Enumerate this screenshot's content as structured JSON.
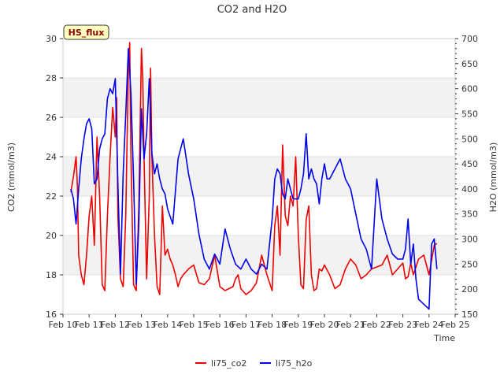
{
  "chart_data": {
    "type": "line",
    "title": "CO2 and H2O",
    "xlabel": "Time",
    "ylabel_left": "CO2 (mmol/m3)",
    "ylabel_right": "H2O (mmol/m3)",
    "badge": "HS_flux",
    "xlim": [
      10,
      25
    ],
    "ylim_left": [
      16,
      30
    ],
    "ylim_right": [
      150,
      700
    ],
    "x_ticks": [
      {
        "v": 10,
        "label": "Feb 10"
      },
      {
        "v": 11,
        "label": "Feb 11"
      },
      {
        "v": 12,
        "label": "Feb 12"
      },
      {
        "v": 13,
        "label": "Feb 13"
      },
      {
        "v": 14,
        "label": "Feb 14"
      },
      {
        "v": 15,
        "label": "Feb 15"
      },
      {
        "v": 16,
        "label": "Feb 16"
      },
      {
        "v": 17,
        "label": "Feb 17"
      },
      {
        "v": 18,
        "label": "Feb 18"
      },
      {
        "v": 19,
        "label": "Feb 19"
      },
      {
        "v": 20,
        "label": "Feb 20"
      },
      {
        "v": 21,
        "label": "Feb 21"
      },
      {
        "v": 22,
        "label": "Feb 22"
      },
      {
        "v": 23,
        "label": "Feb 23"
      },
      {
        "v": 24,
        "label": "Feb 24"
      },
      {
        "v": 25,
        "label": "Feb 25"
      }
    ],
    "y_ticks_left": [
      "16",
      "18",
      "20",
      "22",
      "24",
      "26",
      "28",
      "30"
    ],
    "y_ticks_right": [
      "150",
      "200",
      "250",
      "300",
      "350",
      "400",
      "450",
      "500",
      "550",
      "600",
      "650",
      "700"
    ],
    "grid": "horizontal bands",
    "legend_position": "bottom-center",
    "series": [
      {
        "name": "li75_co2",
        "axis": "left",
        "color": "#ee0000",
        "x": [
          10.3,
          10.4,
          10.5,
          10.55,
          10.6,
          10.7,
          10.8,
          10.9,
          11.0,
          11.1,
          11.2,
          11.3,
          11.4,
          11.5,
          11.6,
          11.7,
          11.8,
          11.9,
          12.0,
          12.05,
          12.1,
          12.2,
          12.3,
          12.4,
          12.5,
          12.55,
          12.6,
          12.7,
          12.8,
          12.9,
          13.0,
          13.05,
          13.1,
          13.2,
          13.3,
          13.35,
          13.4,
          13.5,
          13.6,
          13.7,
          13.8,
          13.9,
          14.0,
          14.1,
          14.2,
          14.3,
          14.4,
          14.5,
          14.6,
          14.8,
          15.0,
          15.2,
          15.4,
          15.6,
          15.8,
          16.0,
          16.2,
          16.5,
          16.6,
          16.7,
          16.8,
          17.0,
          17.2,
          17.4,
          17.6,
          17.8,
          18.0,
          18.1,
          18.2,
          18.3,
          18.4,
          18.5,
          18.6,
          18.7,
          18.8,
          18.9,
          19.0,
          19.1,
          19.2,
          19.3,
          19.4,
          19.5,
          19.6,
          19.7,
          19.8,
          19.9,
          20.0,
          20.2,
          20.4,
          20.6,
          20.8,
          21.0,
          21.2,
          21.4,
          21.6,
          21.8,
          22.0,
          22.2,
          22.4,
          22.6,
          22.8,
          23.0,
          23.1,
          23.2,
          23.3,
          23.4,
          23.6,
          23.8,
          24.0,
          24.2,
          24.3
        ],
        "values": [
          22.2,
          23.0,
          24.0,
          22.5,
          19.0,
          18.0,
          17.5,
          19.0,
          21.0,
          22.0,
          19.5,
          25.0,
          22.0,
          17.5,
          17.2,
          21.0,
          24.0,
          26.5,
          25.0,
          27.0,
          21.0,
          17.8,
          17.4,
          21.0,
          28.5,
          29.8,
          24.0,
          17.5,
          17.2,
          21.5,
          29.5,
          28.0,
          24.0,
          17.8,
          22.0,
          28.5,
          24.0,
          20.0,
          17.4,
          17.0,
          21.5,
          19.0,
          19.3,
          18.8,
          18.5,
          18.0,
          17.4,
          17.8,
          18.0,
          18.3,
          18.5,
          17.6,
          17.5,
          17.8,
          19.0,
          17.4,
          17.2,
          17.4,
          17.8,
          18.0,
          17.3,
          17.0,
          17.2,
          17.6,
          19.0,
          18.0,
          17.2,
          20.5,
          21.5,
          19.0,
          24.6,
          21.0,
          20.5,
          22.0,
          21.5,
          24.0,
          20.0,
          17.5,
          17.3,
          20.8,
          21.5,
          18.0,
          17.2,
          17.3,
          18.3,
          18.2,
          18.5,
          18.0,
          17.3,
          17.5,
          18.3,
          18.8,
          18.5,
          17.8,
          18.0,
          18.3,
          18.4,
          18.5,
          19.0,
          18.0,
          18.3,
          18.6,
          17.8,
          17.9,
          18.6,
          18.0,
          18.8,
          19.0,
          18.0,
          19.5,
          19.6
        ]
      },
      {
        "name": "li75_h2o",
        "axis": "right",
        "color": "#0000ee",
        "x": [
          10.3,
          10.4,
          10.5,
          10.6,
          10.7,
          10.8,
          10.9,
          11.0,
          11.1,
          11.2,
          11.3,
          11.4,
          11.5,
          11.6,
          11.7,
          11.8,
          11.9,
          12.0,
          12.1,
          12.2,
          12.3,
          12.4,
          12.5,
          12.6,
          12.7,
          12.8,
          12.9,
          13.0,
          13.1,
          13.2,
          13.3,
          13.4,
          13.5,
          13.6,
          13.7,
          13.8,
          13.9,
          14.0,
          14.2,
          14.4,
          14.6,
          14.8,
          15.0,
          15.2,
          15.4,
          15.6,
          15.8,
          16.0,
          16.2,
          16.4,
          16.6,
          16.8,
          17.0,
          17.2,
          17.4,
          17.6,
          17.8,
          18.0,
          18.1,
          18.2,
          18.3,
          18.4,
          18.5,
          18.6,
          18.7,
          18.8,
          19.0,
          19.1,
          19.2,
          19.3,
          19.4,
          19.5,
          19.6,
          19.7,
          19.8,
          19.9,
          20.0,
          20.1,
          20.2,
          20.4,
          20.6,
          20.8,
          21.0,
          21.2,
          21.4,
          21.6,
          21.8,
          22.0,
          22.2,
          22.4,
          22.6,
          22.8,
          23.0,
          23.1,
          23.2,
          23.3,
          23.4,
          23.5,
          23.6,
          23.8,
          24.0,
          24.1,
          24.2,
          24.3
        ],
        "values": [
          400,
          380,
          330,
          400,
          460,
          500,
          530,
          540,
          520,
          410,
          420,
          480,
          500,
          510,
          580,
          600,
          590,
          620,
          410,
          230,
          430,
          550,
          680,
          590,
          420,
          210,
          330,
          560,
          460,
          510,
          620,
          470,
          430,
          450,
          420,
          400,
          390,
          360,
          330,
          460,
          500,
          430,
          380,
          310,
          260,
          240,
          270,
          250,
          320,
          280,
          250,
          240,
          260,
          240,
          230,
          250,
          240,
          340,
          420,
          440,
          430,
          390,
          380,
          420,
          400,
          380,
          380,
          400,
          430,
          510,
          420,
          440,
          420,
          410,
          370,
          420,
          450,
          420,
          420,
          440,
          460,
          420,
          400,
          350,
          300,
          280,
          240,
          420,
          340,
          300,
          270,
          260,
          260,
          280,
          340,
          250,
          290,
          220,
          180,
          170,
          160,
          290,
          300,
          240
        ]
      }
    ]
  }
}
